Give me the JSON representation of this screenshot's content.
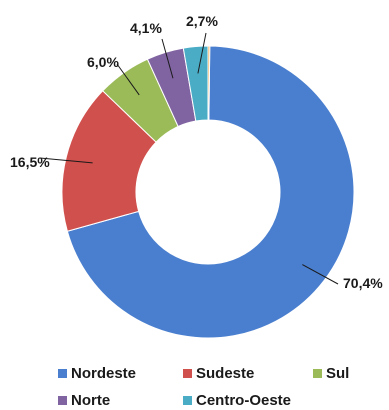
{
  "chart_data": {
    "type": "pie",
    "variant": "donut",
    "title": "",
    "categories": [
      "Nordeste",
      "Sudeste",
      "Sul",
      "Norte",
      "Centro-Oeste"
    ],
    "values": [
      70.4,
      16.5,
      6.0,
      4.1,
      2.7
    ],
    "value_labels": [
      "70,4%",
      "16,5%",
      "6,0%",
      "4,1%",
      "2,7%"
    ],
    "small_unlabeled_slice": {
      "color": "#f4a33a"
    },
    "colors": [
      "#4a7fcf",
      "#d0504d",
      "#9bbb59",
      "#8064a2",
      "#4bacc6"
    ],
    "legend": {
      "placement": "bottom",
      "entries": [
        "Nordeste",
        "Sudeste",
        "Sul",
        "Norte",
        "Centro-Oeste"
      ]
    },
    "grid": false
  }
}
